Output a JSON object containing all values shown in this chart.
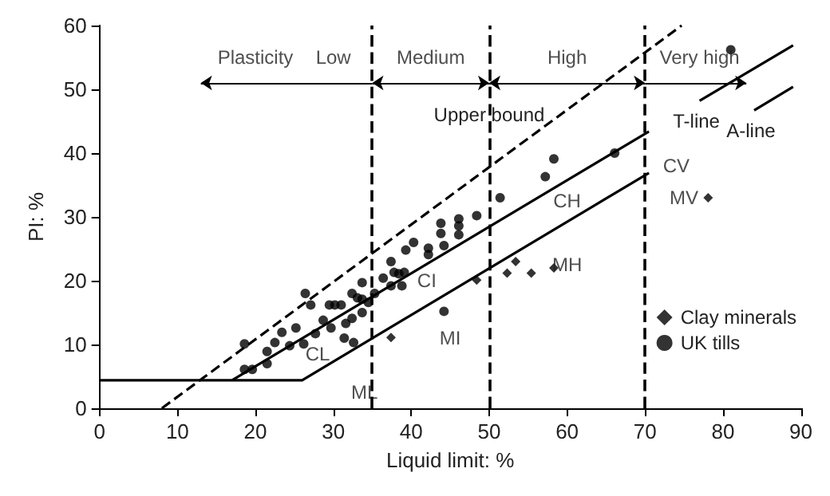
{
  "chart_data": {
    "type": "scatter",
    "xlabel": "Liquid limit: %",
    "ylabel": "PI: %",
    "xlim": [
      0,
      90
    ],
    "ylim": [
      0,
      60
    ],
    "xticks": [
      0,
      10,
      20,
      30,
      40,
      50,
      60,
      70,
      80,
      90
    ],
    "yticks": [
      0,
      10,
      20,
      30,
      40,
      50,
      60
    ],
    "grid": false,
    "legend": "right",
    "series": [
      {
        "name": "Clay minerals",
        "marker": "diamond",
        "color": "#000000",
        "x": [
          37.4,
          48.4,
          52.3,
          53.4,
          55.4,
          58.3,
          78.1
        ],
        "values": [
          11.1,
          20.1,
          21.2,
          23.0,
          21.2,
          22.0,
          33.0
        ]
      },
      {
        "name": "UK tills",
        "marker": "circle",
        "color": "#000000",
        "x": [
          18.6,
          18.6,
          19.6,
          21.5,
          21.5,
          22.5,
          23.4,
          24.4,
          25.2,
          26.2,
          26.4,
          27.1,
          27.7,
          28.7,
          29.5,
          29.7,
          30.2,
          31.0,
          31.4,
          31.6,
          32.4,
          32.4,
          32.6,
          33.1,
          33.7,
          33.7,
          33.7,
          34.5,
          35.3,
          36.4,
          37.4,
          37.4,
          37.8,
          38.4,
          39.1,
          38.8,
          39.3,
          40.3,
          42.2,
          42.2,
          43.8,
          43.8,
          44.2,
          44.2,
          46.1,
          46.1,
          46.1,
          48.4,
          51.4,
          57.2,
          58.3,
          66.1,
          81.0
        ],
        "values": [
          10.1,
          6.1,
          6.1,
          7.0,
          8.9,
          10.3,
          11.9,
          9.8,
          12.6,
          10.1,
          18.0,
          16.2,
          11.7,
          13.8,
          16.2,
          12.6,
          16.2,
          16.2,
          11.0,
          13.3,
          18.0,
          14.1,
          10.3,
          17.3,
          19.7,
          17.1,
          15.0,
          16.6,
          18.0,
          20.4,
          23.0,
          19.2,
          21.3,
          21.1,
          21.3,
          19.2,
          24.8,
          26.0,
          25.1,
          24.1,
          29.0,
          27.4,
          25.5,
          15.2,
          29.7,
          28.6,
          27.2,
          30.2,
          33.0,
          36.3,
          39.1,
          40.0,
          56.2
        ]
      },
      {
        "name": "Upper bound",
        "type": "line",
        "marker": "none",
        "line_style": "dashed",
        "color": "#000000",
        "x": [
          8,
          50,
          74.7
        ],
        "values": [
          0,
          37.8,
          60
        ]
      },
      {
        "name": "T-line",
        "type": "line",
        "marker": "none",
        "line_style": "solid",
        "color": "#000000",
        "x": [
          17,
          70.5,
          74,
          77,
          89
        ],
        "values": [
          4.4,
          43.4,
          null,
          48.2,
          56.9
        ]
      },
      {
        "name": "A-line",
        "type": "line",
        "marker": "none",
        "line_style": "solid",
        "color": "#000000",
        "x": [
          0,
          26,
          70.5,
          77,
          84,
          89
        ],
        "values": [
          4.4,
          4.4,
          36.9,
          null,
          46.7,
          50.4
        ]
      }
    ],
    "ref_lines": [
      {
        "axis": "x",
        "value": 35,
        "line_style": "dashed",
        "color": "#000000"
      },
      {
        "axis": "x",
        "value": 50,
        "line_style": "dashed",
        "color": "#000000"
      },
      {
        "axis": "x",
        "value": 70,
        "line_style": "dashed",
        "color": "#000000"
      }
    ],
    "annotations": [
      "Plasticity",
      "Low",
      "Medium",
      "High",
      "Very high",
      "CV",
      "MV",
      "CH",
      "MH",
      "CI",
      "MI",
      "CL",
      "ML"
    ]
  }
}
